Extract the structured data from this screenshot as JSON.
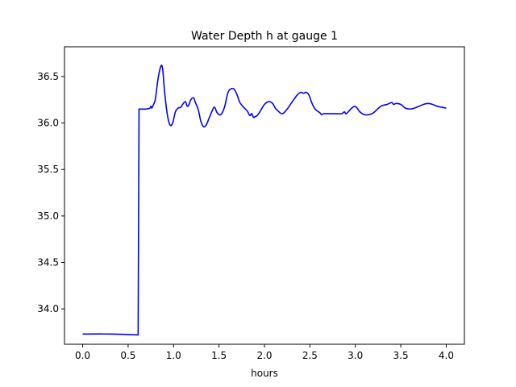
{
  "chart_data": {
    "type": "line",
    "title": "Water Depth h at gauge 1",
    "xlabel": "hours",
    "ylabel": "",
    "xlim": [
      -0.2,
      4.2
    ],
    "ylim": [
      33.62,
      36.82
    ],
    "xticks": [
      0.0,
      0.5,
      1.0,
      1.5,
      2.0,
      2.5,
      3.0,
      3.5,
      4.0
    ],
    "xtick_labels": [
      "0.0",
      "0.5",
      "1.0",
      "1.5",
      "2.0",
      "2.5",
      "3.0",
      "3.5",
      "4.0"
    ],
    "yticks": [
      34.0,
      34.5,
      35.0,
      35.5,
      36.0,
      36.5
    ],
    "ytick_labels": [
      "34.0",
      "34.5",
      "35.0",
      "35.5",
      "36.0",
      "36.5"
    ],
    "grid": false,
    "series": [
      {
        "color": "#0000ff",
        "x": [
          0.0,
          0.3,
          0.61,
          0.62,
          0.63,
          0.7,
          0.74,
          0.75,
          0.76,
          0.77,
          0.78,
          0.8,
          0.83,
          0.86,
          0.88,
          0.9,
          0.93,
          0.96,
          0.99,
          1.02,
          1.05,
          1.08,
          1.1,
          1.13,
          1.15,
          1.17,
          1.19,
          1.22,
          1.24,
          1.27,
          1.3,
          1.33,
          1.36,
          1.39,
          1.42,
          1.45,
          1.48,
          1.52,
          1.56,
          1.6,
          1.64,
          1.67,
          1.7,
          1.73,
          1.77,
          1.81,
          1.84,
          1.86,
          1.88,
          1.9,
          1.92,
          1.95,
          2.0,
          2.05,
          2.09,
          2.12,
          2.16,
          2.2,
          2.25,
          2.3,
          2.36,
          2.4,
          2.43,
          2.46,
          2.49,
          2.52,
          2.55,
          2.58,
          2.61,
          2.63,
          2.65,
          2.7,
          2.8,
          2.85,
          2.88,
          2.9,
          2.95,
          2.99,
          3.02,
          3.05,
          3.1,
          3.15,
          3.2,
          3.28,
          3.35,
          3.4,
          3.42,
          3.45,
          3.5,
          3.55,
          3.6,
          3.65,
          3.7,
          3.75,
          3.8,
          3.85,
          3.9,
          3.95,
          4.0
        ],
        "y": [
          33.73,
          33.73,
          33.72,
          36.15,
          36.15,
          36.15,
          36.16,
          36.18,
          36.16,
          36.18,
          36.2,
          36.26,
          36.48,
          36.61,
          36.58,
          36.35,
          36.1,
          35.98,
          36.0,
          36.12,
          36.16,
          36.17,
          36.2,
          36.23,
          36.18,
          36.2,
          36.25,
          36.27,
          36.22,
          36.15,
          36.02,
          35.96,
          35.98,
          36.05,
          36.12,
          36.17,
          36.11,
          36.09,
          36.17,
          36.33,
          36.37,
          36.36,
          36.3,
          36.22,
          36.17,
          36.13,
          36.08,
          36.1,
          36.06,
          36.07,
          36.08,
          36.12,
          36.2,
          36.23,
          36.21,
          36.16,
          36.12,
          36.1,
          36.15,
          36.22,
          36.3,
          36.33,
          36.32,
          36.33,
          36.3,
          36.22,
          36.16,
          36.13,
          36.11,
          36.09,
          36.1,
          36.1,
          36.1,
          36.1,
          36.12,
          36.1,
          36.15,
          36.18,
          36.16,
          36.12,
          36.09,
          36.09,
          36.11,
          36.18,
          36.2,
          36.22,
          36.2,
          36.21,
          36.2,
          36.16,
          36.15,
          36.16,
          36.18,
          36.2,
          36.21,
          36.2,
          36.18,
          36.17,
          36.16
        ]
      }
    ]
  }
}
